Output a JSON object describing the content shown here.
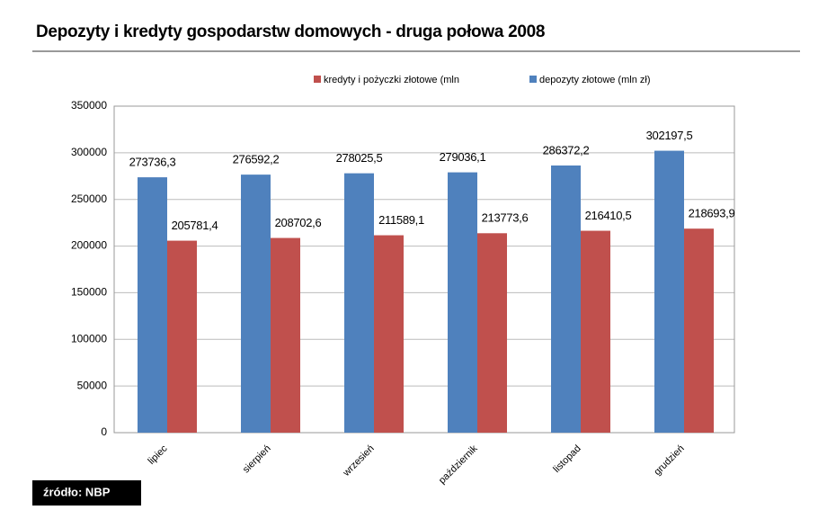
{
  "chart_data": {
    "type": "bar",
    "title": "Depozyty i kredyty gospodarstw domowych - druga połowa 2008",
    "categories": [
      "lipiec",
      "sierpień",
      "wrzesień",
      "październik",
      "listopad",
      "grudzień"
    ],
    "series": [
      {
        "name": "kredyty i pożyczki złotowe (mln",
        "color": "#c0504d",
        "values": [
          205781.4,
          208702.6,
          211589.1,
          213773.6,
          216410.5,
          218693.9
        ],
        "value_labels": [
          "205781,4",
          "208702,6",
          "211589,1",
          "213773,6",
          "216410,5",
          "218693,9"
        ]
      },
      {
        "name": "depozyty złotowe (mln zł)",
        "color": "#4f81bd",
        "values": [
          273736.3,
          276592.2,
          278025.5,
          279036.1,
          286372.2,
          302197.5
        ],
        "value_labels": [
          "273736,3",
          "276592,2",
          "278025,5",
          "279036,1",
          "286372,2",
          "302197,5"
        ]
      }
    ],
    "ylim": [
      0,
      350000
    ],
    "yticks": [
      0,
      50000,
      100000,
      150000,
      200000,
      250000,
      300000,
      350000
    ],
    "grid": true,
    "source": "źródło: NBP"
  }
}
